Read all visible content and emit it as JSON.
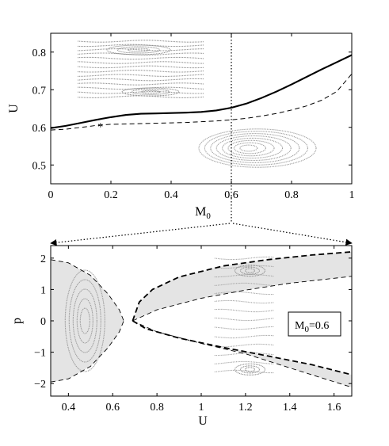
{
  "chart_data": [
    {
      "type": "line",
      "xlabel": "M",
      "xlabel_sub": "0",
      "ylabel": "U",
      "xlim": [
        0,
        1
      ],
      "ylim": [
        0.45,
        0.85
      ],
      "x_ticks": [
        0,
        0.2,
        0.4,
        0.6,
        0.8,
        1
      ],
      "x_tick_labels": [
        "0",
        "0.2",
        "0.4",
        "0.6",
        "0.8",
        "1"
      ],
      "y_ticks": [
        0.5,
        0.6,
        0.7,
        0.8
      ],
      "y_tick_labels": [
        "0.5",
        "0.6",
        "0.7",
        "0.8"
      ],
      "series": [
        {
          "style": "solid",
          "x": [
            0,
            0.05,
            0.1,
            0.15,
            0.2,
            0.25,
            0.3,
            0.35,
            0.4,
            0.45,
            0.5,
            0.55,
            0.6,
            0.65,
            0.7,
            0.75,
            0.8,
            0.85,
            0.9,
            0.95,
            1.0
          ],
          "y": [
            0.598,
            0.604,
            0.612,
            0.62,
            0.627,
            0.633,
            0.636,
            0.637,
            0.638,
            0.639,
            0.641,
            0.645,
            0.652,
            0.663,
            0.678,
            0.695,
            0.714,
            0.734,
            0.754,
            0.773,
            0.792
          ]
        },
        {
          "style": "dashed",
          "x": [
            0,
            0.05,
            0.1,
            0.15,
            0.2,
            0.25,
            0.3,
            0.35,
            0.4,
            0.45,
            0.5,
            0.55,
            0.6,
            0.65,
            0.7,
            0.75,
            0.8,
            0.85,
            0.9,
            0.95,
            1.0
          ],
          "y": [
            0.593,
            0.595,
            0.6,
            0.605,
            0.608,
            0.609,
            0.61,
            0.611,
            0.612,
            0.613,
            0.615,
            0.617,
            0.62,
            0.624,
            0.63,
            0.637,
            0.646,
            0.657,
            0.672,
            0.695,
            0.742
          ]
        }
      ],
      "marker": {
        "symbol": "*",
        "x": 0.165,
        "y": 0.605
      },
      "vertical_line": {
        "x": 0.6,
        "style": "dotted"
      }
    },
    {
      "type": "line",
      "xlabel": "U",
      "ylabel": "p",
      "xlim": [
        0.32,
        1.68
      ],
      "ylim": [
        -2.4,
        2.4
      ],
      "x_ticks": [
        0.4,
        0.6,
        0.8,
        1.0,
        1.2,
        1.4,
        1.6
      ],
      "x_tick_labels": [
        "0.4",
        "0.6",
        "0.8",
        "1",
        "1.2",
        "1.4",
        "1.6"
      ],
      "y_ticks": [
        -2,
        -1,
        0,
        1,
        2
      ],
      "y_tick_labels": [
        "−2",
        "−1",
        "0",
        "1",
        "2"
      ],
      "annotation": {
        "text_main": "M",
        "text_sub": "0",
        "text_value": "=0.6"
      },
      "separatrix_outer_upper": [
        [
          0.32,
          1.95
        ],
        [
          0.4,
          1.85
        ],
        [
          0.5,
          1.45
        ],
        [
          0.58,
          0.85
        ],
        [
          0.63,
          0.35
        ],
        [
          0.65,
          0.0
        ],
        [
          0.68,
          0.25
        ],
        [
          0.75,
          0.62
        ],
        [
          0.9,
          0.95
        ],
        [
          1.1,
          1.22
        ],
        [
          1.3,
          1.45
        ],
        [
          1.5,
          1.6
        ],
        [
          1.68,
          1.75
        ]
      ],
      "separatrix_outer_lower": [
        [
          0.32,
          -1.95
        ],
        [
          0.4,
          -1.85
        ],
        [
          0.5,
          -1.45
        ],
        [
          0.58,
          -0.85
        ],
        [
          0.63,
          -0.35
        ],
        [
          0.65,
          0.0
        ],
        [
          0.68,
          -0.25
        ],
        [
          0.75,
          -0.62
        ],
        [
          0.9,
          -0.95
        ],
        [
          1.1,
          -1.22
        ],
        [
          1.3,
          -1.45
        ],
        [
          1.5,
          -1.6
        ],
        [
          1.68,
          -1.75
        ]
      ],
      "band_edge_upper": [
        [
          0.69,
          0.0
        ],
        [
          0.72,
          0.6
        ],
        [
          0.78,
          1.0
        ],
        [
          0.9,
          1.4
        ],
        [
          1.1,
          1.75
        ],
        [
          1.3,
          1.95
        ],
        [
          1.5,
          2.1
        ],
        [
          1.68,
          2.2
        ]
      ],
      "band_edge_lower": [
        [
          0.69,
          0.0
        ],
        [
          0.75,
          -0.25
        ],
        [
          0.9,
          -0.55
        ],
        [
          1.1,
          -0.85
        ],
        [
          1.3,
          -1.12
        ],
        [
          1.5,
          -1.4
        ],
        [
          1.68,
          -1.72
        ]
      ],
      "band_inner_upper": [
        [
          0.69,
          0.0
        ],
        [
          0.8,
          0.35
        ],
        [
          1.0,
          0.72
        ],
        [
          1.2,
          0.98
        ],
        [
          1.4,
          1.2
        ],
        [
          1.68,
          1.42
        ]
      ],
      "band_inner_lower": [
        [
          0.69,
          0.0
        ],
        [
          0.8,
          -0.35
        ],
        [
          1.0,
          -0.72
        ],
        [
          1.2,
          -1.05
        ],
        [
          1.4,
          -1.5
        ],
        [
          1.68,
          -2.12
        ]
      ]
    }
  ]
}
